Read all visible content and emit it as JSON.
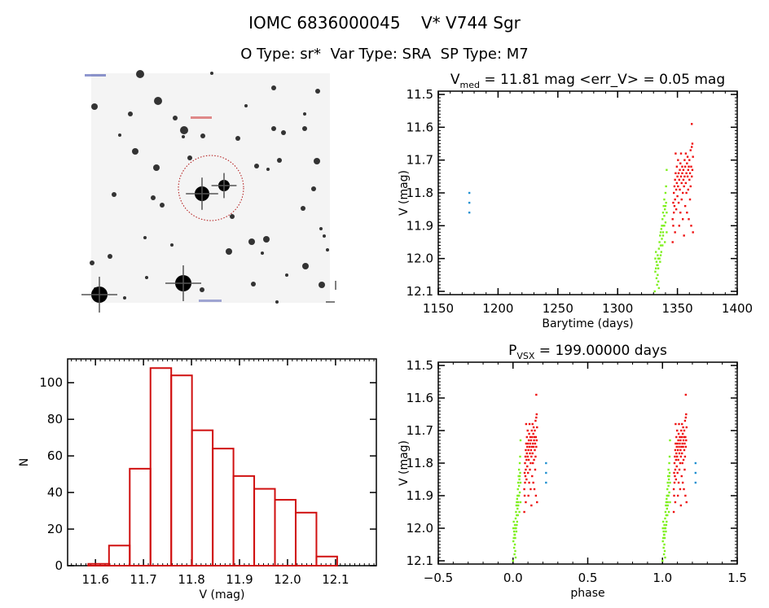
{
  "header": {
    "title": "IOMC 6836000045    V* V744 Sgr",
    "subtitle": "O Type: sr*  Var Type: SRA  SP Type: M7"
  },
  "colors": {
    "early": "#7fef1f",
    "late": "#ee1111",
    "first": "#2090d0",
    "hist": "#d01010",
    "axes": "#000000"
  },
  "chart_data": [
    {
      "id": "finding-chart",
      "type": "image",
      "description_marker": "red dotted circle around target star"
    },
    {
      "id": "light-curve",
      "type": "scatter",
      "title_main": "V",
      "title_sub": "med",
      "title_rest": " = 11.81 mag <err_V> = 0.05 mag",
      "xlabel": "Barytime (days)",
      "ylabel": "V (mag)",
      "xlim": [
        1150,
        1400
      ],
      "ylim": [
        12.11,
        11.49
      ],
      "y_inverted": true,
      "xticks": [
        1150,
        1200,
        1250,
        1300,
        1350,
        1400
      ],
      "yticks": [
        11.5,
        11.6,
        11.7,
        11.8,
        11.9,
        12.0,
        12.1
      ],
      "series": [
        {
          "color_key": "first",
          "points": [
            [
              1176,
              11.8
            ],
            [
              1176,
              11.83
            ],
            [
              1176,
              11.86
            ]
          ]
        },
        {
          "color_key": "early",
          "points": [
            [
              1331,
              12.1
            ],
            [
              1331.5,
              12.04
            ],
            [
              1331.5,
              12.0
            ],
            [
              1332,
              11.98
            ],
            [
              1332,
              12.03
            ],
            [
              1332.5,
              12.06
            ],
            [
              1332.5,
              12.01
            ],
            [
              1333,
              12.08
            ],
            [
              1333,
              12.02
            ],
            [
              1333.5,
              11.99
            ],
            [
              1333.5,
              12.05
            ],
            [
              1334,
              12.07
            ],
            [
              1334,
              12.03
            ],
            [
              1334.5,
              12.09
            ],
            [
              1334.5,
              11.97
            ],
            [
              1335,
              12.0
            ],
            [
              1335,
              11.95
            ],
            [
              1335.5,
              11.93
            ],
            [
              1335.5,
              12.01
            ],
            [
              1336,
              11.96
            ],
            [
              1336,
              11.92
            ],
            [
              1336.5,
              11.98
            ],
            [
              1336.5,
              11.91
            ],
            [
              1337,
              11.94
            ],
            [
              1337,
              11.9
            ],
            [
              1337.5,
              11.96
            ],
            [
              1337.5,
              11.88
            ],
            [
              1338,
              11.92
            ],
            [
              1338,
              11.86
            ],
            [
              1338.5,
              11.9
            ],
            [
              1338.5,
              11.84
            ],
            [
              1339,
              11.87
            ],
            [
              1339,
              11.82
            ],
            [
              1339.5,
              11.95
            ],
            [
              1339.5,
              11.85
            ],
            [
              1340,
              11.8
            ],
            [
              1340,
              11.89
            ],
            [
              1340.5,
              11.83
            ],
            [
              1340.5,
              11.78
            ],
            [
              1341,
              11.86
            ],
            [
              1341,
              11.73
            ],
            [
              1341,
              11.92
            ],
            [
              1333.5,
              12.02
            ],
            [
              1334,
              12.0
            ],
            [
              1336,
              11.99
            ],
            [
              1338,
              11.93
            ],
            [
              1339,
              11.9
            ],
            [
              1340,
              11.84
            ]
          ]
        },
        {
          "color_key": "late",
          "points": [
            [
              1346,
              11.95
            ],
            [
              1346,
              11.88
            ],
            [
              1346.5,
              11.83
            ],
            [
              1346.5,
              11.9
            ],
            [
              1347,
              11.8
            ],
            [
              1347,
              11.86
            ],
            [
              1347.5,
              11.78
            ],
            [
              1347.5,
              11.84
            ],
            [
              1348,
              11.76
            ],
            [
              1348,
              11.82
            ],
            [
              1348,
              11.92
            ],
            [
              1348.5,
              11.74
            ],
            [
              1348.5,
              11.68
            ],
            [
              1349,
              11.79
            ],
            [
              1349,
              11.85
            ],
            [
              1349.5,
              11.72
            ],
            [
              1349.5,
              11.77
            ],
            [
              1350,
              11.75
            ],
            [
              1350,
              11.81
            ],
            [
              1350.5,
              11.7
            ],
            [
              1350.5,
              11.78
            ],
            [
              1351,
              11.74
            ],
            [
              1351,
              11.83
            ],
            [
              1351.5,
              11.76
            ],
            [
              1351.5,
              11.9
            ],
            [
              1352,
              11.73
            ],
            [
              1352,
              11.79
            ],
            [
              1352.5,
              11.71
            ],
            [
              1352.5,
              11.86
            ],
            [
              1353,
              11.75
            ],
            [
              1353,
              11.68
            ],
            [
              1353.5,
              11.77
            ],
            [
              1353.5,
              11.82
            ],
            [
              1354,
              11.74
            ],
            [
              1354,
              11.72
            ],
            [
              1354.5,
              11.8
            ],
            [
              1354.5,
              11.88
            ],
            [
              1355,
              11.73
            ],
            [
              1355,
              11.76
            ],
            [
              1355.5,
              11.78
            ],
            [
              1355.5,
              11.93
            ],
            [
              1356,
              11.7
            ],
            [
              1356,
              11.75
            ],
            [
              1356.5,
              11.84
            ],
            [
              1356.5,
              11.72
            ],
            [
              1357,
              11.68
            ],
            [
              1357,
              11.77
            ],
            [
              1357.5,
              11.74
            ],
            [
              1357.5,
              11.8
            ],
            [
              1358,
              11.71
            ],
            [
              1358,
              11.86
            ],
            [
              1358.5,
              11.75
            ],
            [
              1358.5,
              11.69
            ],
            [
              1359,
              11.73
            ],
            [
              1359,
              11.79
            ],
            [
              1359.5,
              11.72
            ],
            [
              1359.5,
              11.88
            ],
            [
              1360,
              11.76
            ],
            [
              1360,
              11.7
            ],
            [
              1360.5,
              11.74
            ],
            [
              1360.5,
              11.82
            ],
            [
              1361,
              11.67
            ],
            [
              1361,
              11.78
            ],
            [
              1361.5,
              11.72
            ],
            [
              1361.5,
              11.9
            ],
            [
              1362,
              11.59
            ],
            [
              1362,
              11.66
            ],
            [
              1362,
              11.75
            ],
            [
              1362.5,
              11.65
            ],
            [
              1362.5,
              11.73
            ],
            [
              1363,
              11.69
            ],
            [
              1363,
              11.92
            ]
          ]
        }
      ]
    },
    {
      "id": "histogram",
      "type": "bar",
      "xlabel": "V (mag)",
      "ylabel": "N",
      "xlim": [
        11.542,
        12.185
      ],
      "ylim": [
        0,
        113
      ],
      "xticks": [
        11.6,
        11.7,
        11.8,
        11.9,
        12.0,
        12.1
      ],
      "yticks": [
        0,
        20,
        40,
        60,
        80,
        100
      ],
      "bin_start": 11.585,
      "bin_width": 0.0432,
      "values": [
        1,
        11,
        53,
        108,
        104,
        74,
        64,
        49,
        42,
        36,
        29,
        5
      ]
    },
    {
      "id": "phase-curve",
      "type": "scatter",
      "title_main": "P",
      "title_sub": "VSX",
      "title_rest": " = 199.00000 days",
      "period_days": 199.0,
      "xlabel": "phase",
      "ylabel": "V (mag)",
      "xlim": [
        -0.5,
        1.5
      ],
      "ylim": [
        12.11,
        11.49
      ],
      "y_inverted": true,
      "xticks": [
        -0.5,
        0.0,
        0.5,
        1.0,
        1.5
      ],
      "xtick_labels": [
        "−0.5",
        "0.0",
        "0.5",
        "1.0",
        "1.5"
      ],
      "yticks": [
        11.5,
        11.6,
        11.7,
        11.8,
        11.9,
        12.0,
        12.1
      ]
    }
  ]
}
